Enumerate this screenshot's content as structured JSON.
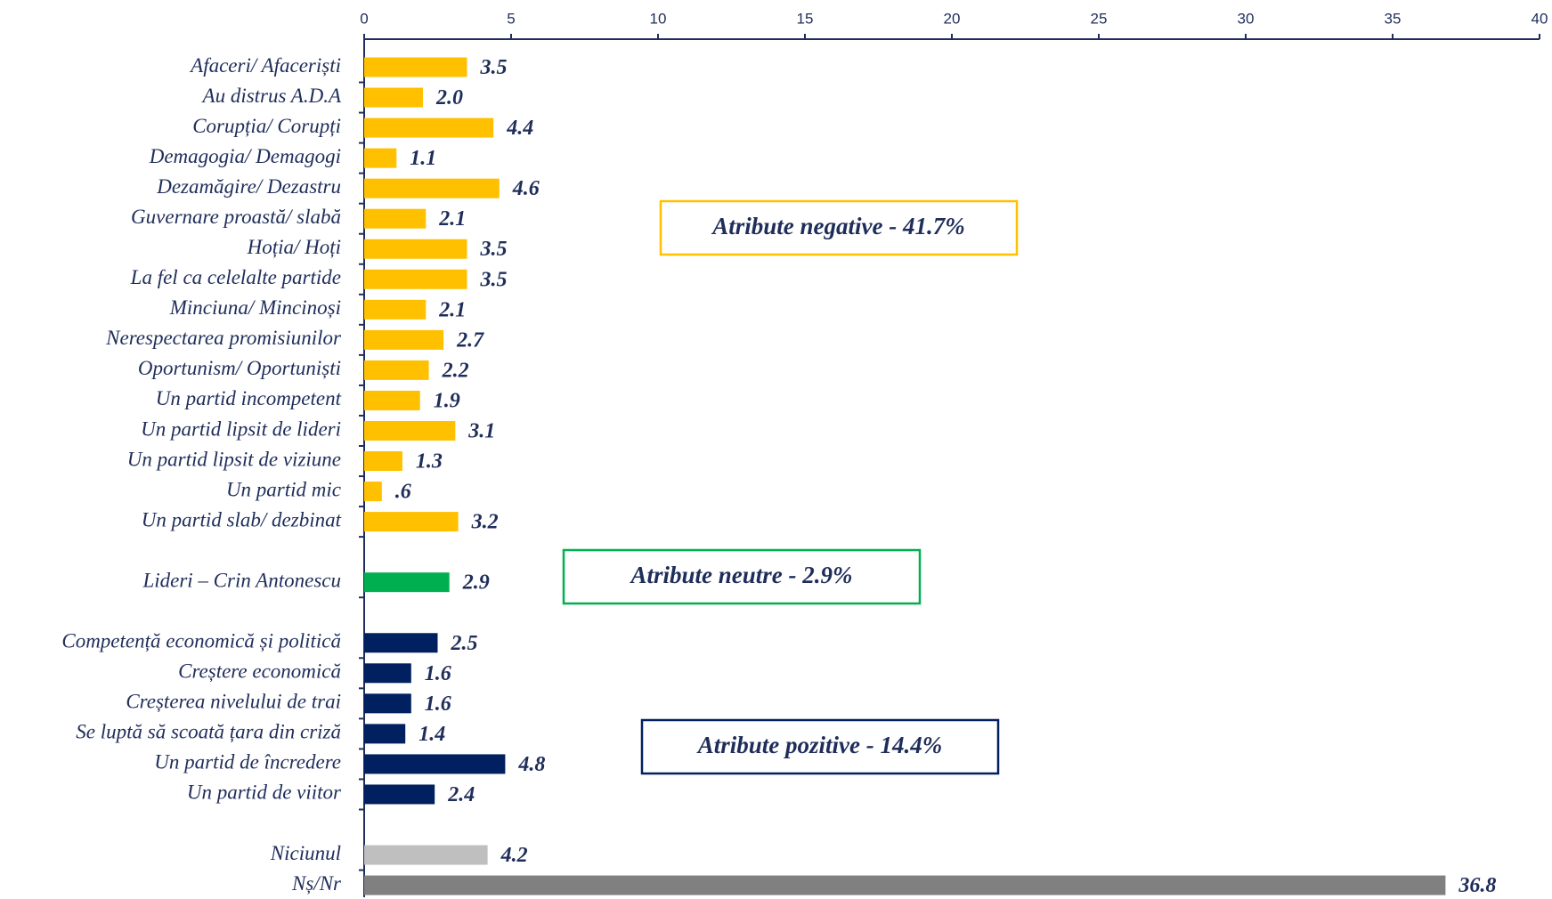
{
  "chart_data": {
    "type": "bar",
    "orientation": "horizontal",
    "xlim": [
      0,
      40
    ],
    "xticks": [
      0,
      5,
      10,
      15,
      20,
      25,
      30,
      35,
      40
    ],
    "groups": [
      {
        "color": "#ffc000",
        "categories": [
          "Afaceri/ Afaceriști",
          "Au distrus A.D.A",
          "Corupția/ Corupți",
          "Demagogia/ Demagogi",
          "Dezamăgire/ Dezastru",
          "Guvernare proastă/ slabă",
          "Hoția/ Hoți",
          "La fel ca celelalte partide",
          "Minciuna/ Mincinoși",
          "Nerespectarea promisiunilor",
          "Oportunism/ Oportuniști",
          "Un partid incompetent",
          "Un partid lipsit de lideri",
          "Un partid lipsit de viziune",
          "Un partid mic",
          "Un partid slab/ dezbinat"
        ],
        "values": [
          3.5,
          2.0,
          4.4,
          1.1,
          4.6,
          2.1,
          3.5,
          3.5,
          2.1,
          2.7,
          2.2,
          1.9,
          3.1,
          1.3,
          0.6,
          3.2
        ],
        "value_labels": [
          "3.5",
          "2.0",
          "4.4",
          "1.1",
          "4.6",
          "2.1",
          "3.5",
          "3.5",
          "2.1",
          "2.7",
          "2.2",
          "1.9",
          "3.1",
          "1.3",
          ".6",
          "3.2"
        ],
        "annotation": "Atribute negative - 41.7%"
      },
      {
        "color": "#00b050",
        "categories": [
          "Lideri – Crin Antonescu"
        ],
        "values": [
          2.9
        ],
        "value_labels": [
          "2.9"
        ],
        "annotation": "Atribute neutre - 2.9%"
      },
      {
        "color": "#002060",
        "categories": [
          "Competență economică și politică",
          "Creștere economică",
          "Creșterea nivelului de trai",
          "Se luptă să scoată țara din criză",
          "Un partid de încredere",
          "Un partid de viitor"
        ],
        "values": [
          2.5,
          1.6,
          1.6,
          1.4,
          4.8,
          2.4
        ],
        "value_labels": [
          "2.5",
          "1.6",
          "1.6",
          "1.4",
          "4.8",
          "2.4"
        ],
        "annotation": "Atribute pozitive - 14.4%"
      },
      {
        "colors": [
          "#bfbfbf",
          "#808080"
        ],
        "categories": [
          "Niciunul",
          "Nș/Nr"
        ],
        "values": [
          4.2,
          36.8
        ],
        "value_labels": [
          "4.2",
          "36.8"
        ]
      }
    ]
  }
}
